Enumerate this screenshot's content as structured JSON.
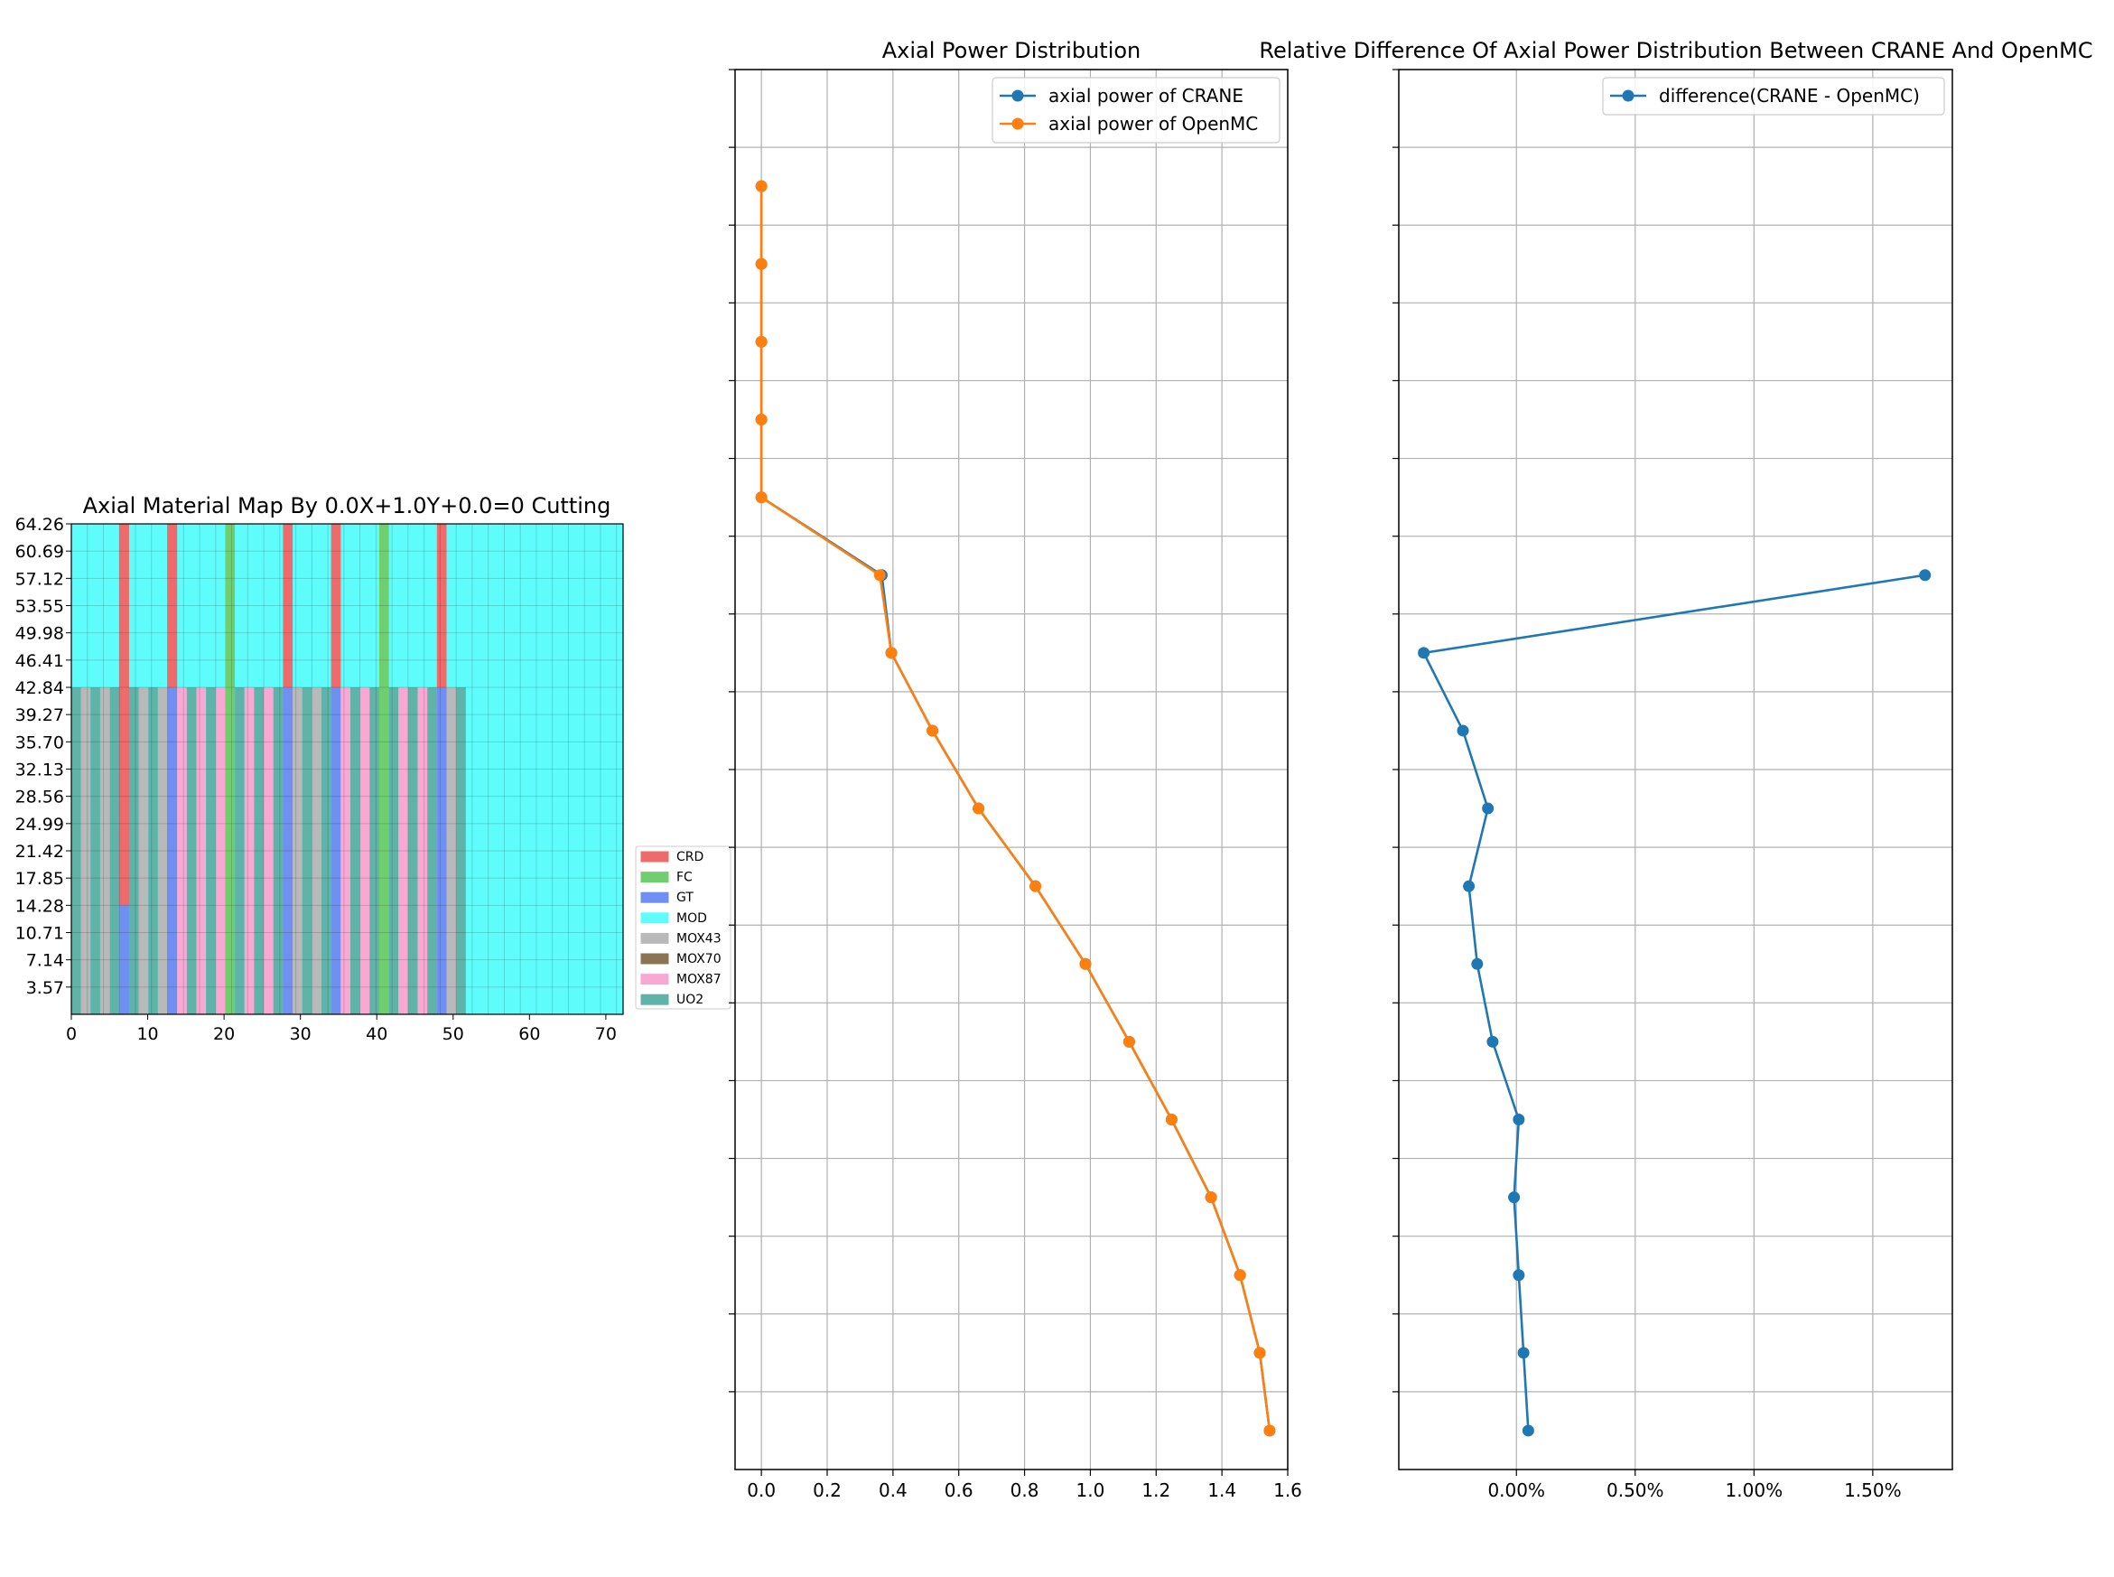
{
  "chart_data": [
    {
      "type": "heatmap",
      "title": "Axial Material Map By 0.0X+1.0Y+0.0=0 Cutting",
      "xticks": [
        0,
        10,
        20,
        30,
        40,
        50,
        60,
        70
      ],
      "xlim": [
        0,
        72.26
      ],
      "ylim": [
        0,
        64.26
      ],
      "yticks": [
        "3.57",
        "7.14",
        "10.71",
        "14.28",
        "17.85",
        "21.42",
        "24.99",
        "28.56",
        "32.13",
        "35.70",
        "39.27",
        "42.84",
        "46.41",
        "49.98",
        "53.55",
        "57.12",
        "60.69",
        "64.26"
      ],
      "legend": [
        {
          "label": "CRD",
          "color": "#ef6a6a"
        },
        {
          "label": "FC",
          "color": "#6fcf6f"
        },
        {
          "label": "GT",
          "color": "#6f8ff2"
        },
        {
          "label": "MOD",
          "color": "#5ffcfc"
        },
        {
          "label": "MOX43",
          "color": "#b9b9b9"
        },
        {
          "label": "MOX70",
          "color": "#8b7355"
        },
        {
          "label": "MOX87",
          "color": "#f9a8d4"
        },
        {
          "label": "UO2",
          "color": "#5fb3a8"
        }
      ],
      "legend_position": "right",
      "background_material": "MOD",
      "fuel_top": 42.84,
      "crd_bottom": 14.28,
      "columns": [
        {
          "x0": 0.0,
          "x1": 1.26,
          "material": "UO2"
        },
        {
          "x0": 1.26,
          "x1": 2.52,
          "material": "MOX43"
        },
        {
          "x0": 2.52,
          "x1": 3.78,
          "material": "UO2"
        },
        {
          "x0": 3.78,
          "x1": 5.04,
          "material": "MOX43"
        },
        {
          "x0": 5.04,
          "x1": 6.3,
          "material": "UO2"
        },
        {
          "x0": 6.3,
          "x1": 7.56,
          "material": "GT",
          "rod": "CRD_PARTIAL"
        },
        {
          "x0": 7.56,
          "x1": 8.82,
          "material": "UO2"
        },
        {
          "x0": 8.82,
          "x1": 10.08,
          "material": "MOX43"
        },
        {
          "x0": 10.08,
          "x1": 11.34,
          "material": "UO2"
        },
        {
          "x0": 11.34,
          "x1": 12.6,
          "material": "MOX43"
        },
        {
          "x0": 12.6,
          "x1": 13.86,
          "material": "GT",
          "rod": "CRD_TOP"
        },
        {
          "x0": 13.86,
          "x1": 15.12,
          "material": "MOX87"
        },
        {
          "x0": 15.12,
          "x1": 16.38,
          "material": "UO2"
        },
        {
          "x0": 16.38,
          "x1": 17.64,
          "material": "MOX87"
        },
        {
          "x0": 17.64,
          "x1": 18.9,
          "material": "UO2"
        },
        {
          "x0": 18.9,
          "x1": 20.16,
          "material": "MOX87"
        },
        {
          "x0": 20.16,
          "x1": 21.42,
          "material": "FC",
          "full": true
        },
        {
          "x0": 21.42,
          "x1": 22.68,
          "material": "UO2"
        },
        {
          "x0": 22.68,
          "x1": 23.94,
          "material": "MOX87"
        },
        {
          "x0": 23.94,
          "x1": 25.2,
          "material": "UO2"
        },
        {
          "x0": 25.2,
          "x1": 26.46,
          "material": "MOX87"
        },
        {
          "x0": 26.46,
          "x1": 27.72,
          "material": "UO2"
        },
        {
          "x0": 27.72,
          "x1": 28.98,
          "material": "GT",
          "rod": "CRD_TOP"
        },
        {
          "x0": 28.98,
          "x1": 30.24,
          "material": "MOX43"
        },
        {
          "x0": 30.24,
          "x1": 31.5,
          "material": "UO2"
        },
        {
          "x0": 31.5,
          "x1": 32.76,
          "material": "MOX43"
        },
        {
          "x0": 32.76,
          "x1": 34.02,
          "material": "UO2"
        },
        {
          "x0": 34.02,
          "x1": 35.28,
          "material": "GT",
          "rod": "CRD_TOP"
        },
        {
          "x0": 35.28,
          "x1": 36.54,
          "material": "MOX87"
        },
        {
          "x0": 36.54,
          "x1": 37.8,
          "material": "UO2"
        },
        {
          "x0": 37.8,
          "x1": 39.06,
          "material": "MOX87"
        },
        {
          "x0": 39.06,
          "x1": 40.32,
          "material": "UO2"
        },
        {
          "x0": 40.32,
          "x1": 41.58,
          "material": "FC",
          "full": true
        },
        {
          "x0": 41.58,
          "x1": 42.84,
          "material": "UO2"
        },
        {
          "x0": 42.84,
          "x1": 44.1,
          "material": "MOX87"
        },
        {
          "x0": 44.1,
          "x1": 45.36,
          "material": "UO2"
        },
        {
          "x0": 45.36,
          "x1": 46.62,
          "material": "MOX87"
        },
        {
          "x0": 46.62,
          "x1": 47.88,
          "material": "UO2"
        },
        {
          "x0": 47.88,
          "x1": 49.14,
          "material": "GT",
          "rod": "CRD_TOP"
        },
        {
          "x0": 49.14,
          "x1": 50.4,
          "material": "MOX43"
        },
        {
          "x0": 50.4,
          "x1": 51.66,
          "material": "UO2"
        }
      ]
    },
    {
      "type": "line",
      "title": "Axial Power Distribution",
      "xlim": [
        -0.08,
        1.6
      ],
      "ylim": [
        -0.5,
        17.5
      ],
      "xticks": [
        "0.0",
        "0.2",
        "0.4",
        "0.6",
        "0.8",
        "1.0",
        "1.2",
        "1.4",
        "1.6"
      ],
      "xtick_values": [
        0.0,
        0.2,
        0.4,
        0.6,
        0.8,
        1.0,
        1.2,
        1.4,
        1.6
      ],
      "grid": true,
      "legend_position": "top-right",
      "y": [
        0,
        1,
        2,
        3,
        4,
        5,
        6,
        7,
        8,
        9,
        10,
        11,
        12,
        13,
        14,
        15,
        16
      ],
      "series": [
        {
          "name": "axial power of CRANE",
          "color": "#1f77b4",
          "values": [
            1.545,
            1.515,
            1.455,
            1.367,
            1.247,
            1.118,
            0.985,
            0.833,
            0.66,
            0.52,
            0.395,
            0.366,
            0.0,
            0.0,
            0.0,
            0.0,
            0.0
          ]
        },
        {
          "name": "axial power of OpenMC",
          "color": "#ff7f0e",
          "values": [
            1.545,
            1.515,
            1.455,
            1.367,
            1.247,
            1.118,
            0.985,
            0.833,
            0.66,
            0.52,
            0.395,
            0.36,
            0.0,
            0.0,
            0.0,
            0.0,
            0.0
          ]
        }
      ]
    },
    {
      "type": "line",
      "title": "Relative Difference Of Axial Power Distribution Between CRANE And OpenMC",
      "xlim": [
        -0.495,
        1.835
      ],
      "ylim": [
        -0.5,
        17.5
      ],
      "xticks": [
        "0.00%",
        "0.50%",
        "1.00%",
        "1.50%"
      ],
      "xtick_values": [
        0.0,
        0.5,
        1.0,
        1.5
      ],
      "grid": true,
      "legend_position": "top-right",
      "y": [
        0,
        1,
        2,
        3,
        4,
        5,
        6,
        7,
        8,
        9,
        10,
        11
      ],
      "series": [
        {
          "name": "difference(CRANE - OpenMC)",
          "color": "#1f77b4",
          "values": [
            0.05,
            0.03,
            0.01,
            -0.01,
            0.01,
            -0.1,
            -0.165,
            -0.2,
            -0.12,
            -0.225,
            -0.39,
            1.72
          ]
        }
      ]
    }
  ]
}
